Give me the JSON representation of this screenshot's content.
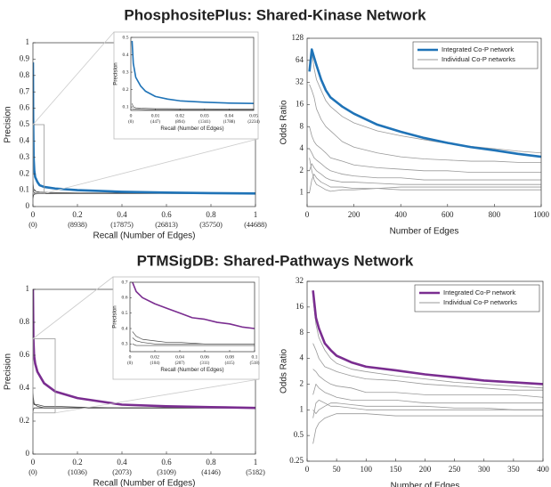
{
  "section_titles": [
    {
      "text": "PhosphositePlus: Shared-Kinase Network",
      "color": "#1f73b7"
    },
    {
      "text": "PTMSigDB: Shared-Pathways Network",
      "color": "#7a2d90"
    }
  ],
  "chart_data": [
    {
      "type": "line",
      "xlabel": "Recall (Number of Edges)",
      "ylabel": "Precision",
      "xlim": [
        0,
        1
      ],
      "ylim": [
        0,
        1
      ],
      "xticks": [
        0,
        0.2,
        0.4,
        0.6,
        0.8,
        1
      ],
      "xtick_sublabels": [
        "(0)",
        "(8938)",
        "(17875)",
        "(26813)",
        "(35750)",
        "(44688)"
      ],
      "yticks": [
        0,
        0.1,
        0.2,
        0.3,
        0.4,
        0.5,
        0.6,
        0.7,
        0.8,
        0.9,
        1
      ],
      "x": [
        0,
        0.001,
        0.003,
        0.006,
        0.01,
        0.02,
        0.03,
        0.05,
        0.1,
        0.2,
        0.4,
        0.6,
        0.8,
        1
      ],
      "series": [
        {
          "color": "#1f73b7",
          "values": [
            0.88,
            0.55,
            0.3,
            0.22,
            0.18,
            0.15,
            0.13,
            0.12,
            0.11,
            0.1,
            0.09,
            0.085,
            0.082,
            0.08
          ]
        },
        {
          "color": "#444444",
          "lines": [
            [
              0.2,
              0.14,
              0.11,
              0.1,
              0.095,
              0.09,
              0.088,
              0.087,
              0.085,
              0.083,
              0.082,
              0.081,
              0.08,
              0.08
            ],
            [
              0.12,
              0.1,
              0.09,
              0.085,
              0.083,
              0.082,
              0.081,
              0.08,
              0.08,
              0.08,
              0.08,
              0.08,
              0.08,
              0.08
            ],
            [
              0.05,
              0.06,
              0.07,
              0.075,
              0.077,
              0.078,
              0.079,
              0.079,
              0.08,
              0.08,
              0.08,
              0.08,
              0.08,
              0.08
            ]
          ]
        }
      ],
      "inset": {
        "xlabel": "Recall (Number of Edges)",
        "ylabel": "Precision",
        "xlim": [
          0,
          0.05
        ],
        "ylim": [
          0.08,
          0.5
        ],
        "xticks": [
          0,
          0.01,
          0.02,
          0.03,
          0.04,
          0.05
        ],
        "xtick_sublabels": [
          "(0)",
          "(447)",
          "(894)",
          "(1341)",
          "(1788)",
          "(2234)"
        ],
        "yticks": [
          0.1,
          0.2,
          0.3,
          0.4,
          0.5
        ],
        "x": [
          0.0005,
          0.001,
          0.002,
          0.004,
          0.006,
          0.01,
          0.015,
          0.02,
          0.03,
          0.04,
          0.05
        ],
        "series": [
          {
            "color": "#1f73b7",
            "values": [
              0.48,
              0.35,
              0.27,
              0.22,
              0.19,
              0.16,
              0.145,
              0.135,
              0.127,
              0.122,
              0.12
            ]
          },
          {
            "color": "#444444",
            "lines": [
              [
                0.12,
                0.1,
                0.095,
                0.093,
                0.092,
                0.09,
                0.09,
                0.089,
                0.089,
                0.088,
                0.088
              ],
              [
                0.09,
                0.088,
                0.087,
                0.086,
                0.085,
                0.085,
                0.085,
                0.084,
                0.084,
                0.084,
                0.084
              ]
            ]
          }
        ]
      }
    },
    {
      "type": "line",
      "xlabel": "Number of Edges",
      "ylabel": "Odds Ratio",
      "log_y": true,
      "legend": "upper right",
      "xlim": [
        0,
        1000
      ],
      "ylim": [
        0.65,
        128
      ],
      "xticks": [
        0,
        200,
        400,
        600,
        800,
        1000
      ],
      "yticks": [
        1,
        2,
        4,
        8,
        16,
        32,
        64,
        128
      ],
      "x": [
        10,
        20,
        30,
        40,
        60,
        80,
        100,
        150,
        200,
        300,
        400,
        500,
        600,
        700,
        800,
        900,
        1000
      ],
      "series": [
        {
          "name": "Integrated Co-P network",
          "color": "#1f73b7",
          "values": [
            45,
            90,
            70,
            55,
            35,
            25,
            20,
            15,
            12,
            8.5,
            6.8,
            5.6,
            4.8,
            4.2,
            3.8,
            3.4,
            3.1
          ]
        },
        {
          "name": "Individual Co-P networks",
          "color": "#999999",
          "lines": [
            [
              60,
              80,
              50,
              35,
              25,
              18,
              15,
              11,
              9,
              7,
              6,
              5.3,
              4.7,
              4.3,
              4,
              3.7,
              3.5
            ],
            [
              30,
              25,
              20,
              14,
              10,
              8,
              7,
              5,
              4.2,
              3.5,
              3.1,
              2.9,
              2.8,
              2.7,
              2.7,
              2.6,
              2.6
            ],
            [
              8,
              6,
              5,
              4.5,
              4,
              3.5,
              3,
              2.7,
              2.4,
              2.2,
              2.1,
              2,
              2,
              1.9,
              1.9,
              1.9,
              1.9
            ],
            [
              4,
              3.5,
              3,
              2.8,
              2.5,
              2.2,
              2,
              1.8,
              1.7,
              1.6,
              1.6,
              1.5,
              1.5,
              1.5,
              1.5,
              1.5,
              1.5
            ],
            [
              2,
              2.5,
              2.2,
              2,
              1.8,
              1.6,
              1.5,
              1.4,
              1.4,
              1.35,
              1.3,
              1.3,
              1.3,
              1.3,
              1.3,
              1.3,
              1.3
            ],
            [
              1,
              1.5,
              1.8,
              1.6,
              1.4,
              1.3,
              1.2,
              1.2,
              1.15,
              1.15,
              1.1,
              1.1,
              1.1,
              1.1,
              1.1,
              1.1,
              1.1
            ],
            [
              3,
              2,
              1.5,
              1.3,
              1.2,
              1.1,
              1.05,
              1.1,
              1.1,
              1.15,
              1.2,
              1.2,
              1.2,
              1.2,
              1.2,
              1.2,
              1.2
            ]
          ]
        }
      ]
    },
    {
      "type": "line",
      "xlabel": "Recall (Number of Edges)",
      "ylabel": "Precision",
      "xlim": [
        0,
        1
      ],
      "ylim": [
        0,
        1
      ],
      "xticks": [
        0,
        0.2,
        0.4,
        0.6,
        0.8,
        1
      ],
      "xtick_sublabels": [
        "(0)",
        "(1036)",
        "(2073)",
        "(3109)",
        "(4146)",
        "(5182)"
      ],
      "yticks": [
        0,
        0.2,
        0.4,
        0.6,
        0.8,
        1
      ],
      "x": [
        0,
        0.002,
        0.005,
        0.01,
        0.02,
        0.05,
        0.1,
        0.2,
        0.4,
        0.6,
        0.8,
        1
      ],
      "series": [
        {
          "color": "#7a2d90",
          "values": [
            1,
            0.7,
            0.6,
            0.55,
            0.5,
            0.43,
            0.38,
            0.34,
            0.3,
            0.29,
            0.285,
            0.28
          ]
        },
        {
          "color": "#444444",
          "lines": [
            [
              0.35,
              0.32,
              0.3,
              0.3,
              0.3,
              0.29,
              0.29,
              0.285,
              0.28,
              0.28,
              0.28,
              0.28
            ],
            [
              0.25,
              0.27,
              0.28,
              0.28,
              0.28,
              0.28,
              0.28,
              0.28,
              0.28,
              0.28,
              0.28,
              0.28
            ],
            [
              0.38,
              0.34,
              0.31,
              0.3,
              0.29,
              0.28,
              0.28,
              0.28,
              0.28,
              0.28,
              0.28,
              0.28
            ]
          ]
        }
      ],
      "inset": {
        "xlabel": "Recall (Number of Edges)",
        "ylabel": "Precision",
        "xlim": [
          0,
          0.1
        ],
        "ylim": [
          0.25,
          0.7
        ],
        "xticks": [
          0,
          0.02,
          0.04,
          0.06,
          0.08,
          0.1
        ],
        "xtick_sublabels": [
          "(0)",
          "(104)",
          "(207)",
          "(311)",
          "(415)",
          "(518)"
        ],
        "yticks": [
          0.3,
          0.4,
          0.5,
          0.6,
          0.7
        ],
        "x": [
          0.002,
          0.005,
          0.01,
          0.02,
          0.03,
          0.04,
          0.05,
          0.06,
          0.07,
          0.08,
          0.09,
          0.1
        ],
        "series": [
          {
            "color": "#7a2d90",
            "values": [
              0.7,
              0.64,
              0.6,
              0.56,
              0.53,
              0.5,
              0.47,
              0.46,
              0.44,
              0.43,
              0.41,
              0.4
            ]
          },
          {
            "color": "#444444",
            "lines": [
              [
                0.38,
                0.35,
                0.33,
                0.32,
                0.31,
                0.31,
                0.305,
                0.3,
                0.3,
                0.3,
                0.3,
                0.3
              ],
              [
                0.3,
                0.29,
                0.29,
                0.29,
                0.29,
                0.29,
                0.29,
                0.29,
                0.29,
                0.29,
                0.29,
                0.29
              ],
              [
                0.34,
                0.32,
                0.31,
                0.3,
                0.3,
                0.3,
                0.3,
                0.3,
                0.3,
                0.3,
                0.3,
                0.3
              ]
            ]
          }
        ]
      }
    },
    {
      "type": "line",
      "xlabel": "Number of Edges",
      "ylabel": "Odds Ratio",
      "log_y": true,
      "legend": "upper right",
      "xlim": [
        0,
        400
      ],
      "ylim": [
        0.25,
        32
      ],
      "xticks": [
        0,
        50,
        100,
        150,
        200,
        250,
        300,
        350,
        400
      ],
      "yticks": [
        0.25,
        0.5,
        1,
        2,
        4,
        8,
        16,
        32
      ],
      "x": [
        10,
        15,
        20,
        30,
        40,
        50,
        75,
        100,
        150,
        200,
        250,
        300,
        350,
        400
      ],
      "series": [
        {
          "name": "Integrated Co-P network",
          "color": "#7a2d90",
          "values": [
            25,
            12,
            9,
            6,
            5,
            4.3,
            3.6,
            3.2,
            2.9,
            2.6,
            2.4,
            2.2,
            2.1,
            2
          ]
        },
        {
          "name": "Individual Co-P networks",
          "color": "#999999",
          "lines": [
            [
              20,
              10,
              7,
              5,
              4,
              3.5,
              3,
              2.8,
              2.5,
              2.3,
              2.1,
              2,
              1.9,
              1.8
            ],
            [
              6,
              5,
              4,
              3.2,
              3,
              2.8,
              2.5,
              2.3,
              2.2,
              2,
              1.9,
              1.8,
              1.7,
              1.7
            ],
            [
              3,
              2.8,
              2.5,
              2.2,
              2,
              1.9,
              1.8,
              1.6,
              1.6,
              1.5,
              1.5,
              1.5,
              1.5,
              1.4
            ],
            [
              1.5,
              2,
              1.8,
              1.6,
              1.5,
              1.4,
              1.3,
              1.3,
              1.3,
              1.2,
              1.2,
              1.2,
              1.2,
              1.2
            ],
            [
              0.8,
              1.2,
              1.3,
              1.2,
              1.1,
              1.1,
              1.05,
              1,
              1,
              1,
              1,
              1,
              1,
              1
            ],
            [
              0.4,
              0.6,
              0.7,
              0.8,
              0.85,
              0.9,
              0.9,
              0.9,
              0.85,
              0.85,
              0.85,
              0.85,
              0.85,
              0.85
            ],
            [
              1,
              0.9,
              1,
              1.1,
              1.2,
              1.2,
              1.15,
              1.1,
              1.1,
              1.1,
              1.05,
              1.05,
              1,
              1
            ]
          ]
        }
      ]
    }
  ]
}
